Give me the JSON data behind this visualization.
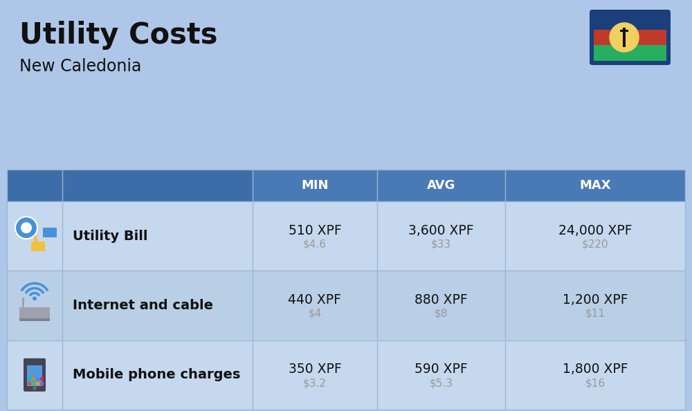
{
  "title": "Utility Costs",
  "subtitle": "New Caledonia",
  "background_color": "#aec6e8",
  "header_bg_color": "#4a7ab5",
  "header_icon_bg_color": "#3d6da8",
  "header_text_color": "#ffffff",
  "row_bg_color_odd": "#c5d8ee",
  "row_bg_color_even": "#b8cfe6",
  "col_headers": [
    "MIN",
    "AVG",
    "MAX"
  ],
  "rows": [
    {
      "label": "Utility Bill",
      "icon": "utility",
      "min_xpf": "510 XPF",
      "min_usd": "$4.6",
      "avg_xpf": "3,600 XPF",
      "avg_usd": "$33",
      "max_xpf": "24,000 XPF",
      "max_usd": "$220"
    },
    {
      "label": "Internet and cable",
      "icon": "internet",
      "min_xpf": "440 XPF",
      "min_usd": "$4",
      "avg_xpf": "880 XPF",
      "avg_usd": "$8",
      "max_xpf": "1,200 XPF",
      "max_usd": "$11"
    },
    {
      "label": "Mobile phone charges",
      "icon": "mobile",
      "min_xpf": "350 XPF",
      "min_usd": "$3.2",
      "avg_xpf": "590 XPF",
      "avg_usd": "$5.3",
      "max_xpf": "1,800 XPF",
      "max_usd": "$16"
    }
  ],
  "flag_blue": "#1a3f7a",
  "flag_red": "#c0392b",
  "flag_green": "#27ae60",
  "flag_yellow": "#f0d060",
  "xpf_fontsize": 13.5,
  "usd_fontsize": 11,
  "label_fontsize": 14,
  "header_fontsize": 13,
  "title_fontsize": 30,
  "subtitle_fontsize": 17,
  "usd_color": "#999999",
  "text_color": "#111111",
  "label_color": "#111111",
  "divider_color": "#9ab8d4"
}
